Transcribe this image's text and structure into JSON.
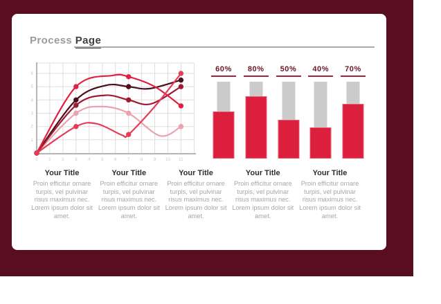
{
  "page_title": {
    "prefix": "Process",
    "emphasis": "Page"
  },
  "colors": {
    "background_maroon": "#580e20",
    "slide_white": "#ffffff",
    "title_gray": "#9b9b9b",
    "title_dark": "#3e3e3e",
    "axis_gray": "#b5b5b5",
    "grid_gray": "#dedede",
    "tick_label_gray": "#c8c8c8"
  },
  "chart_data": [
    {
      "type": "line",
      "title": "",
      "xlabel": "",
      "ylabel": "",
      "x_ticks": [
        "0",
        "1",
        "2",
        "3",
        "4",
        "5",
        "6",
        "7",
        "8",
        "9",
        "10",
        "11"
      ],
      "y_ticks": [
        "1",
        "2",
        "3",
        "4",
        "5",
        "6"
      ],
      "x_range": [
        0,
        12
      ],
      "y_range": [
        0,
        7
      ],
      "grid": true,
      "legend": "none",
      "series": [
        {
          "name": "light-pink-line",
          "color": "#e9a2ae",
          "markers": [
            [
              0,
              0
            ],
            [
              3,
              3
            ],
            [
              7,
              3
            ],
            [
              11,
              2
            ]
          ],
          "shape": [
            [
              0,
              0
            ],
            [
              3,
              3
            ],
            [
              5,
              3.5
            ],
            [
              7,
              3
            ],
            [
              9.4,
              1.3
            ],
            [
              11,
              2
            ]
          ]
        },
        {
          "name": "dark-maroon-line",
          "color": "#4a0e1d",
          "markers": [
            [
              0,
              0
            ],
            [
              3,
              4
            ],
            [
              7,
              5
            ],
            [
              11,
              5.5
            ]
          ],
          "shape": [
            [
              0,
              0
            ],
            [
              3,
              4
            ],
            [
              5.3,
              5.1
            ],
            [
              7,
              5
            ],
            [
              8.6,
              4.85
            ],
            [
              11,
              5.5
            ]
          ]
        },
        {
          "name": "dark-red-line",
          "color": "#9e1b33",
          "markers": [
            [
              0,
              0
            ],
            [
              3,
              3.6
            ],
            [
              7,
              4
            ],
            [
              11,
              5
            ]
          ],
          "shape": [
            [
              0,
              0
            ],
            [
              3,
              3.6
            ],
            [
              5.2,
              4.35
            ],
            [
              7,
              4
            ],
            [
              8.7,
              3.7
            ],
            [
              11,
              5
            ]
          ]
        },
        {
          "name": "crimson-line",
          "color": "#e11f41",
          "markers": [
            [
              0,
              0
            ],
            [
              3,
              5
            ],
            [
              7,
              5.75
            ],
            [
              11,
              3.55
            ]
          ],
          "shape": [
            [
              0,
              0
            ],
            [
              3,
              5
            ],
            [
              5.8,
              5.85
            ],
            [
              7,
              5.75
            ],
            [
              9,
              5.0
            ],
            [
              11,
              3.55
            ]
          ]
        },
        {
          "name": "bright-crimson-line",
          "color": "#e73c58",
          "markers": [
            [
              0,
              0
            ],
            [
              3,
              2
            ],
            [
              7,
              1.4
            ],
            [
              11,
              6
            ]
          ],
          "shape": [
            [
              0,
              0
            ],
            [
              3,
              2
            ],
            [
              4.6,
              2.2
            ],
            [
              6.5,
              1.35
            ],
            [
              7,
              1.4
            ],
            [
              9,
              3.5
            ],
            [
              11,
              6
            ]
          ]
        }
      ]
    },
    {
      "type": "bar",
      "title": "",
      "categories": [
        "60%",
        "80%",
        "50%",
        "40%",
        "70%"
      ],
      "values": [
        60,
        80,
        50,
        40,
        70
      ],
      "max": 100,
      "track_color": "#cbcbcb",
      "fill_color": "#dc1f3d",
      "label_color": "#6b1526",
      "underline_color": "#a6203a"
    }
  ],
  "columns": [
    {
      "title": "Your Title",
      "body": "Proin efficitur ornare turpis, vel pulvinar risus maximus nec. Lorem ipsum dolor sit amet."
    },
    {
      "title": "Your Title",
      "body": "Proin efficitur ornare turpis, vel pulvinar risus maximus nec. Lorem ipsum dolor sit amet."
    },
    {
      "title": "Your Title",
      "body": "Proin efficitur ornare turpis, vel pulvinar risus maximus nec. Lorem ipsum dolor sit amet."
    },
    {
      "title": "Your Title",
      "body": "Proin efficitur ornare turpis, vel pulvinar risus maximus nec. Lorem ipsum dolor sit amet."
    },
    {
      "title": "Your Title",
      "body": "Proin efficitur ornare turpis, vel pulvinar risus maximus nec. Lorem ipsum dolor sit amet."
    }
  ]
}
